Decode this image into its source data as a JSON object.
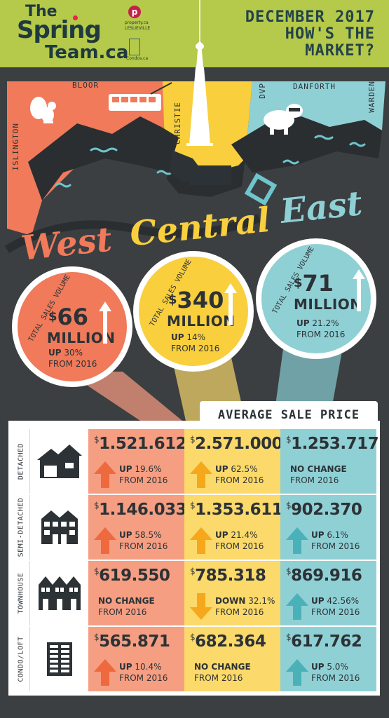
{
  "header": {
    "logo_the": "The",
    "logo_spring": "Spring",
    "logo_team": "Team.ca",
    "logo_property": "property.ca",
    "logo_lesliesville": "LESLIEVILLE",
    "logo_condos": "Condos.ca",
    "title_line1": "DECEMBER 2017",
    "title_line2": "HOW'S THE",
    "title_line3": "MARKET?"
  },
  "map": {
    "streets": [
      "BLOOR",
      "ISLINGTON",
      "CHRISTIE",
      "DVP",
      "DANFORTH",
      "WARDEN"
    ],
    "regions": [
      "West",
      "Central",
      "East"
    ]
  },
  "volume": [
    {
      "region": "West",
      "label": "TOTAL SALES VOLUME",
      "currency": "$",
      "amount": "66",
      "unit": "MILLION",
      "dir": "UP",
      "pct": "30%",
      "from": "FROM 2016",
      "color": "#f07a5a"
    },
    {
      "region": "Central",
      "label": "TOTAL SALES VOLUME",
      "currency": "$",
      "amount": "340",
      "unit": "MILLION",
      "dir": "UP",
      "pct": "14%",
      "from": "FROM 2016",
      "color": "#f9cf3d"
    },
    {
      "region": "East",
      "label": "TOTAL SALES VOLUME",
      "currency": "$",
      "amount": "71",
      "unit": "MILLION",
      "dir": "UP",
      "pct": "21.2%",
      "from": "FROM 2016",
      "color": "#6ec5cc"
    }
  ],
  "table": {
    "title": "AVERAGE SALE PRICE",
    "colors": {
      "west": "#f59e82",
      "central": "#fbd96a",
      "east": "#8fd0d5",
      "arrow_west": "#ee6a3e",
      "arrow_central": "#f6a71b",
      "arrow_east": "#4bb1b8"
    },
    "rows": [
      {
        "label": "DETACHED",
        "icon": "detached-house-icon",
        "cells": [
          {
            "price": "1.521.612",
            "dir": "UP",
            "pct": "19.6%",
            "from": "FROM 2016",
            "arrow": "up"
          },
          {
            "price": "2.571.000",
            "dir": "UP",
            "pct": "62.5%",
            "from": "FROM 2016",
            "arrow": "up"
          },
          {
            "price": "1.253.717",
            "dir": "NO CHANGE",
            "pct": "",
            "from": "FROM 2016",
            "arrow": "none"
          }
        ]
      },
      {
        "label": "SEMI-DETACHED",
        "icon": "semi-detached-icon",
        "cells": [
          {
            "price": "1.146.033",
            "dir": "UP",
            "pct": "58.5%",
            "from": "FROM 2016",
            "arrow": "up"
          },
          {
            "price": "1.353.611",
            "dir": "UP",
            "pct": "21.4%",
            "from": "FROM 2016",
            "arrow": "up"
          },
          {
            "price": "902.370",
            "dir": "UP",
            "pct": "6.1%",
            "from": "FROM 2016",
            "arrow": "up"
          }
        ]
      },
      {
        "label": "TOWNHOUSE",
        "icon": "townhouse-icon",
        "cells": [
          {
            "price": "619.550",
            "dir": "NO CHANGE",
            "pct": "",
            "from": "FROM 2016",
            "arrow": "none"
          },
          {
            "price": "785.318",
            "dir": "DOWN",
            "pct": "32.1%",
            "from": "FROM 2016",
            "arrow": "down"
          },
          {
            "price": "869.916",
            "dir": "UP",
            "pct": "42.56%",
            "from": "FROM 2016",
            "arrow": "up"
          }
        ]
      },
      {
        "label": "CONDO/LOFT",
        "icon": "condo-building-icon",
        "cells": [
          {
            "price": "565.871",
            "dir": "UP",
            "pct": "10.4%",
            "from": "FROM 2016",
            "arrow": "up"
          },
          {
            "price": "682.364",
            "dir": "NO CHANGE",
            "pct": "",
            "from": "FROM 2016",
            "arrow": "none"
          },
          {
            "price": "617.762",
            "dir": "UP",
            "pct": "5.0%",
            "from": "FROM 2016",
            "arrow": "up"
          }
        ]
      }
    ]
  }
}
